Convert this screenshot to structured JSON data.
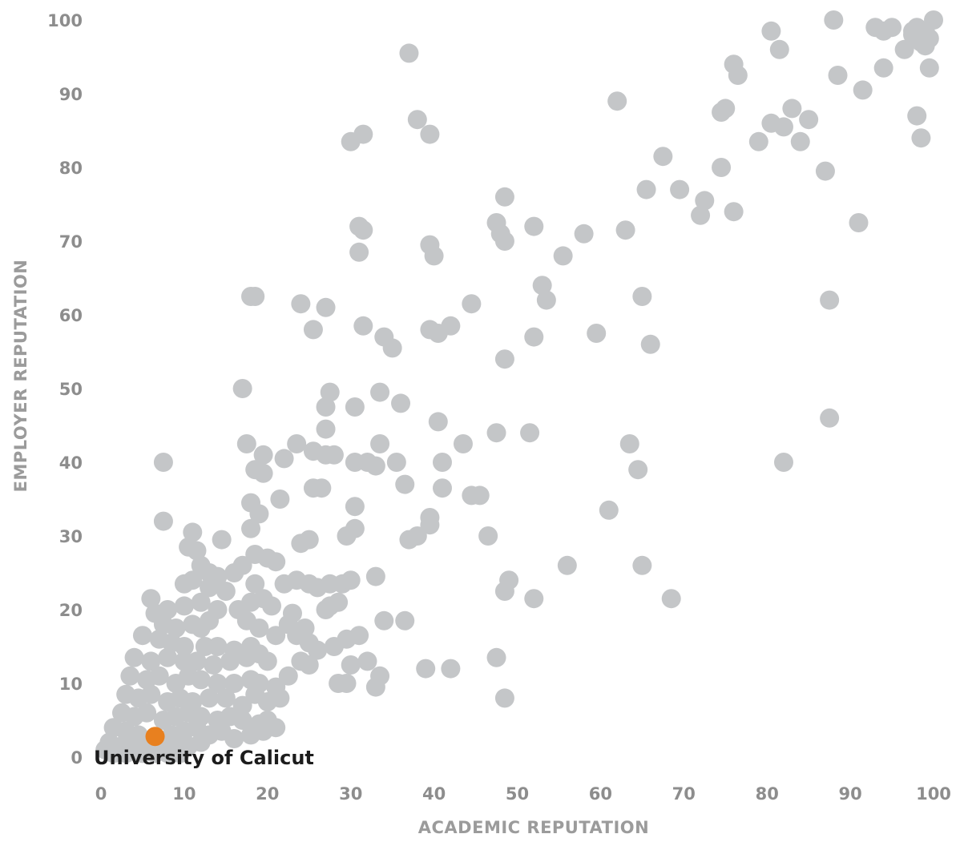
{
  "chart_data": {
    "type": "scatter",
    "xlabel": "ACADEMIC REPUTATION",
    "ylabel": "EMPLOYER REPUTATION",
    "xlim": [
      0,
      100
    ],
    "ylim": [
      0,
      100
    ],
    "x_ticks": [
      "0",
      "10",
      "20",
      "30",
      "40",
      "50",
      "60",
      "70",
      "80",
      "90",
      "100"
    ],
    "y_ticks": [
      "0",
      "10",
      "20",
      "30",
      "40",
      "50",
      "60",
      "70",
      "80",
      "90",
      "100"
    ],
    "grid": false,
    "colors": {
      "others": "#c4c6c8",
      "highlight": "#e8801f",
      "tick_text": "#8d8d8d",
      "label_text": "#1c1c1c"
    },
    "highlight": {
      "name": "University of Calicut",
      "x": 6.5,
      "y": 2.8
    },
    "points": [
      [
        100,
        100
      ],
      [
        99,
        98.5
      ],
      [
        98,
        99
      ],
      [
        97.5,
        98
      ],
      [
        99.5,
        97.5
      ],
      [
        96.5,
        96
      ],
      [
        98.5,
        97
      ],
      [
        99,
        96.5
      ],
      [
        97.5,
        98.5
      ],
      [
        93,
        99
      ],
      [
        94,
        98.5
      ],
      [
        95,
        99
      ],
      [
        88,
        100
      ],
      [
        80.5,
        98.5
      ],
      [
        81.5,
        96
      ],
      [
        76,
        94
      ],
      [
        76.5,
        92.5
      ],
      [
        88.5,
        92.5
      ],
      [
        91.5,
        90.5
      ],
      [
        94,
        93.5
      ],
      [
        99.5,
        93.5
      ],
      [
        62,
        89
      ],
      [
        37,
        95.5
      ],
      [
        30,
        83.5
      ],
      [
        31.5,
        84.5
      ],
      [
        38,
        86.5
      ],
      [
        39.5,
        84.5
      ],
      [
        98,
        87
      ],
      [
        98.5,
        84
      ],
      [
        85,
        86.5
      ],
      [
        82,
        85.5
      ],
      [
        83,
        88
      ],
      [
        80.5,
        86
      ],
      [
        84,
        83.5
      ],
      [
        75,
        88
      ],
      [
        74.5,
        87.5
      ],
      [
        79,
        83.5
      ],
      [
        67.5,
        81.5
      ],
      [
        74.5,
        80
      ],
      [
        87,
        79.5
      ],
      [
        65.5,
        77
      ],
      [
        69.5,
        77
      ],
      [
        72.5,
        75.5
      ],
      [
        72,
        73.5
      ],
      [
        76,
        74
      ],
      [
        91,
        72.5
      ],
      [
        48.5,
        76
      ],
      [
        31,
        72
      ],
      [
        31.5,
        71.5
      ],
      [
        31,
        68.5
      ],
      [
        47.5,
        72.5
      ],
      [
        48,
        71
      ],
      [
        48.5,
        70
      ],
      [
        52,
        72
      ],
      [
        58,
        71
      ],
      [
        63,
        71.5
      ],
      [
        55.5,
        68
      ],
      [
        39.5,
        69.5
      ],
      [
        40,
        68
      ],
      [
        53,
        64
      ],
      [
        53.5,
        62
      ],
      [
        65,
        62.5
      ],
      [
        87.5,
        62
      ],
      [
        18,
        62.5
      ],
      [
        18.5,
        62.5
      ],
      [
        24,
        61.5
      ],
      [
        27,
        61
      ],
      [
        44.5,
        61.5
      ],
      [
        31.5,
        58.5
      ],
      [
        25.5,
        58
      ],
      [
        34,
        57
      ],
      [
        39.5,
        58
      ],
      [
        40.5,
        57.5
      ],
      [
        42,
        58.5
      ],
      [
        35,
        55.5
      ],
      [
        52,
        57
      ],
      [
        59.5,
        57.5
      ],
      [
        66,
        56
      ],
      [
        48.5,
        54
      ],
      [
        17,
        50
      ],
      [
        27.5,
        49.5
      ],
      [
        33.5,
        49.5
      ],
      [
        27,
        47.5
      ],
      [
        30.5,
        47.5
      ],
      [
        36,
        48
      ],
      [
        40.5,
        45.5
      ],
      [
        87.5,
        46
      ],
      [
        27,
        44.5
      ],
      [
        47.5,
        44
      ],
      [
        51.5,
        44
      ],
      [
        17.5,
        42.5
      ],
      [
        23.5,
        42.5
      ],
      [
        33.5,
        42.5
      ],
      [
        43.5,
        42.5
      ],
      [
        63.5,
        42.5
      ],
      [
        7.5,
        40
      ],
      [
        19.5,
        41
      ],
      [
        22,
        40.5
      ],
      [
        25.5,
        41.5
      ],
      [
        27,
        41
      ],
      [
        28,
        41
      ],
      [
        30.5,
        40
      ],
      [
        32,
        40
      ],
      [
        33,
        39.5
      ],
      [
        35.5,
        40
      ],
      [
        41,
        40
      ],
      [
        82,
        40
      ],
      [
        18.5,
        39
      ],
      [
        19.5,
        38.5
      ],
      [
        25.5,
        36.5
      ],
      [
        26.5,
        36.5
      ],
      [
        36.5,
        37
      ],
      [
        41,
        36.5
      ],
      [
        44.5,
        35.5
      ],
      [
        45.5,
        35.5
      ],
      [
        64.5,
        39
      ],
      [
        18,
        34.5
      ],
      [
        21.5,
        35
      ],
      [
        30.5,
        34
      ],
      [
        61,
        33.5
      ],
      [
        19,
        33
      ],
      [
        39.5,
        32.5
      ],
      [
        7.5,
        32
      ],
      [
        11,
        30.5
      ],
      [
        18,
        31
      ],
      [
        14.5,
        29.5
      ],
      [
        24,
        29
      ],
      [
        25,
        29.5
      ],
      [
        29.5,
        30
      ],
      [
        30.5,
        31
      ],
      [
        37,
        29.5
      ],
      [
        38,
        30
      ],
      [
        39.5,
        31.5
      ],
      [
        46.5,
        30
      ],
      [
        10.5,
        28.5
      ],
      [
        11.5,
        28
      ],
      [
        18.5,
        27.5
      ],
      [
        20,
        27
      ],
      [
        21,
        26.5
      ],
      [
        17,
        26
      ],
      [
        16,
        25
      ],
      [
        12,
        26
      ],
      [
        13,
        25
      ],
      [
        14,
        24.5
      ],
      [
        11,
        24
      ],
      [
        10,
        23.5
      ],
      [
        13,
        23
      ],
      [
        15,
        22.5
      ],
      [
        18.5,
        23.5
      ],
      [
        22,
        23.5
      ],
      [
        23.5,
        24
      ],
      [
        25,
        23.5
      ],
      [
        26,
        23
      ],
      [
        27.5,
        23.5
      ],
      [
        29,
        23.5
      ],
      [
        30,
        24
      ],
      [
        33,
        24.5
      ],
      [
        49,
        24
      ],
      [
        48.5,
        22.5
      ],
      [
        6,
        21.5
      ],
      [
        8,
        20
      ],
      [
        10,
        20.5
      ],
      [
        12,
        21
      ],
      [
        14,
        20
      ],
      [
        16.5,
        20
      ],
      [
        18,
        21
      ],
      [
        19.5,
        21.5
      ],
      [
        20.5,
        20.5
      ],
      [
        23,
        19.5
      ],
      [
        27,
        20
      ],
      [
        27.5,
        20.5
      ],
      [
        28.5,
        21
      ],
      [
        52,
        21.5
      ],
      [
        56,
        26
      ],
      [
        65,
        26
      ],
      [
        68.5,
        21.5
      ],
      [
        6.5,
        19.5
      ],
      [
        7.5,
        18
      ],
      [
        9,
        17.5
      ],
      [
        11,
        18
      ],
      [
        12,
        17.5
      ],
      [
        13,
        18.5
      ],
      [
        17.5,
        18.5
      ],
      [
        19,
        17.5
      ],
      [
        22.5,
        18
      ],
      [
        24.5,
        17.5
      ],
      [
        34,
        18.5
      ],
      [
        36.5,
        18.5
      ],
      [
        5,
        16.5
      ],
      [
        7,
        16
      ],
      [
        8.5,
        15.5
      ],
      [
        10,
        15
      ],
      [
        12.5,
        15
      ],
      [
        14,
        15
      ],
      [
        16,
        14.5
      ],
      [
        18,
        15
      ],
      [
        19,
        14
      ],
      [
        21,
        16.5
      ],
      [
        23.5,
        16.5
      ],
      [
        25,
        15.5
      ],
      [
        26,
        14.5
      ],
      [
        28,
        15
      ],
      [
        29.5,
        16
      ],
      [
        31,
        16.5
      ],
      [
        4,
        13.5
      ],
      [
        6,
        13
      ],
      [
        8,
        13.5
      ],
      [
        10,
        13
      ],
      [
        11.5,
        13
      ],
      [
        13.5,
        12.5
      ],
      [
        15.5,
        13
      ],
      [
        17.5,
        13.5
      ],
      [
        20,
        13
      ],
      [
        24,
        13
      ],
      [
        25,
        12.5
      ],
      [
        30,
        12.5
      ],
      [
        32,
        13
      ],
      [
        47.5,
        13.5
      ],
      [
        3.5,
        11
      ],
      [
        5.5,
        10.5
      ],
      [
        7,
        11
      ],
      [
        9,
        10
      ],
      [
        10.5,
        11
      ],
      [
        12,
        10.5
      ],
      [
        14,
        10
      ],
      [
        16,
        10
      ],
      [
        18,
        10.5
      ],
      [
        19,
        10
      ],
      [
        21,
        9.5
      ],
      [
        22.5,
        11
      ],
      [
        28.5,
        10
      ],
      [
        29.5,
        10
      ],
      [
        33,
        9.5
      ],
      [
        33.5,
        11
      ],
      [
        39,
        12
      ],
      [
        42,
        12
      ],
      [
        3,
        8.5
      ],
      [
        4.5,
        8
      ],
      [
        6,
        8.5
      ],
      [
        8,
        7.5
      ],
      [
        9.5,
        8
      ],
      [
        11,
        7.5
      ],
      [
        13,
        8
      ],
      [
        15,
        8
      ],
      [
        17,
        7
      ],
      [
        18.5,
        8.5
      ],
      [
        20,
        7.5
      ],
      [
        21.5,
        8
      ],
      [
        48.5,
        8
      ],
      [
        2.5,
        6
      ],
      [
        4,
        5.5
      ],
      [
        5.5,
        6
      ],
      [
        7.5,
        5
      ],
      [
        9,
        5.5
      ],
      [
        10.5,
        6
      ],
      [
        12,
        5.5
      ],
      [
        14,
        5
      ],
      [
        15.5,
        5.5
      ],
      [
        17,
        5
      ],
      [
        19,
        4.5
      ],
      [
        20,
        5
      ],
      [
        21,
        4
      ],
      [
        1.5,
        4
      ],
      [
        3,
        3.5
      ],
      [
        4.5,
        3
      ],
      [
        8.5,
        3
      ],
      [
        10,
        3.5
      ],
      [
        11.5,
        4
      ],
      [
        13,
        3
      ],
      [
        14.5,
        3.5
      ],
      [
        16,
        2.5
      ],
      [
        18,
        3
      ],
      [
        19.5,
        3.5
      ],
      [
        1,
        2
      ],
      [
        2.5,
        1.5
      ],
      [
        4,
        2
      ],
      [
        5.5,
        1
      ],
      [
        7.5,
        1.5
      ],
      [
        9,
        2
      ],
      [
        10.5,
        1.5
      ],
      [
        12,
        2
      ],
      [
        0.5,
        1
      ],
      [
        1.5,
        0.5
      ],
      [
        3,
        0.5
      ],
      [
        5,
        0.5
      ],
      [
        6.5,
        0.5
      ],
      [
        8,
        0.5
      ],
      [
        9.5,
        0.5
      ]
    ]
  }
}
